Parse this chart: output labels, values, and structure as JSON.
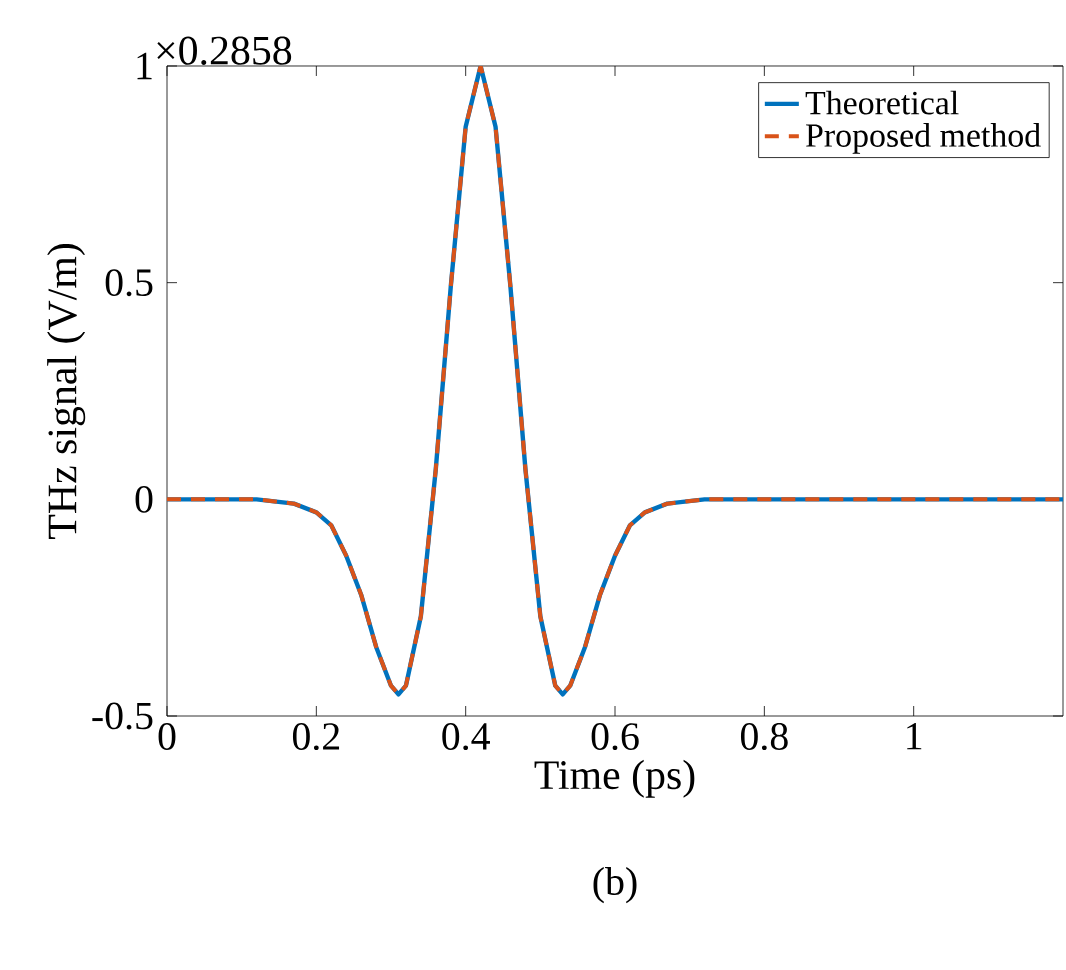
{
  "chart_data": {
    "type": "line",
    "xlabel": "Time (ps)",
    "ylabel": "THz signal (V/m)",
    "annotations": [
      "×0.2858",
      "(b)"
    ],
    "x": [
      0,
      0.1,
      0.12,
      0.17,
      0.2,
      0.22,
      0.24,
      0.26,
      0.28,
      0.3,
      0.31,
      0.32,
      0.34,
      0.36,
      0.38,
      0.4,
      0.42,
      0.44,
      0.46,
      0.48,
      0.5,
      0.52,
      0.53,
      0.54,
      0.56,
      0.58,
      0.6,
      0.62,
      0.64,
      0.67,
      0.72,
      0.8,
      1.0,
      1.2
    ],
    "series": [
      {
        "name": "Theoretical",
        "color": "#0072bd",
        "line_style": "solid",
        "values": [
          0,
          0,
          0,
          -0.01,
          -0.03,
          -0.06,
          -0.13,
          -0.22,
          -0.34,
          -0.43,
          -0.45,
          -0.43,
          -0.27,
          0.07,
          0.49,
          0.86,
          1,
          0.86,
          0.49,
          0.07,
          -0.27,
          -0.43,
          -0.45,
          -0.43,
          -0.34,
          -0.22,
          -0.13,
          -0.06,
          -0.03,
          -0.01,
          0,
          0,
          0,
          0
        ]
      },
      {
        "name": "Proposed method",
        "color": "#d95319",
        "line_style": "dashed",
        "values": [
          0,
          0,
          0,
          -0.01,
          -0.03,
          -0.06,
          -0.13,
          -0.22,
          -0.34,
          -0.43,
          -0.45,
          -0.43,
          -0.27,
          0.07,
          0.49,
          0.86,
          1,
          0.86,
          0.49,
          0.07,
          -0.27,
          -0.43,
          -0.45,
          -0.43,
          -0.34,
          -0.22,
          -0.13,
          -0.06,
          -0.03,
          -0.01,
          0,
          0,
          0,
          0
        ]
      }
    ],
    "xlim": [
      0,
      1.2
    ],
    "ylim": [
      -0.5,
      1
    ],
    "xticks": [
      0,
      0.2,
      0.4,
      0.6,
      0.8,
      1
    ],
    "yticks": [
      -0.5,
      0,
      0.5,
      1
    ],
    "grid": false,
    "legend": "top right"
  }
}
